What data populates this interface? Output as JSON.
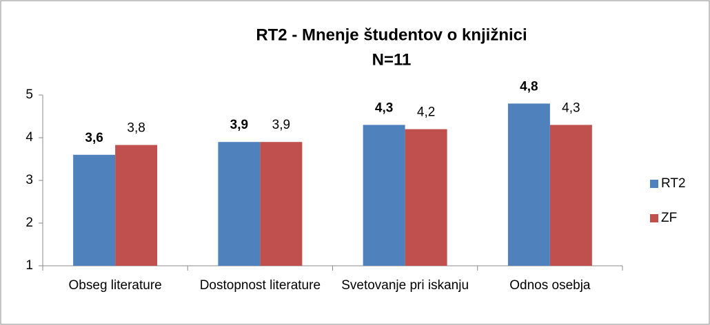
{
  "chart_data": {
    "type": "bar",
    "title": "RT2 - Mnenje študentov o knjižnici",
    "subtitle": "N=11",
    "categories": [
      "Obseg literature",
      "Dostopnost literature",
      "Svetovanje pri iskanju",
      "Odnos osebja"
    ],
    "series": [
      {
        "name": "RT2",
        "color": "#4f81bd",
        "values": [
          3.6,
          3.9,
          4.3,
          4.8
        ],
        "value_labels": [
          "3,6",
          "3,9",
          "4,3",
          "4,8"
        ],
        "bold_labels": true
      },
      {
        "name": "ZF",
        "color": "#c0504d",
        "values": [
          3.83,
          3.9,
          4.2,
          4.3
        ],
        "value_labels": [
          "3,8",
          "3,9",
          "4,2",
          "4,3"
        ],
        "bold_labels": false
      }
    ],
    "ylim": [
      1,
      5
    ],
    "yticks": [
      1,
      2,
      3,
      4,
      5
    ],
    "grid": false,
    "legend": "right"
  }
}
